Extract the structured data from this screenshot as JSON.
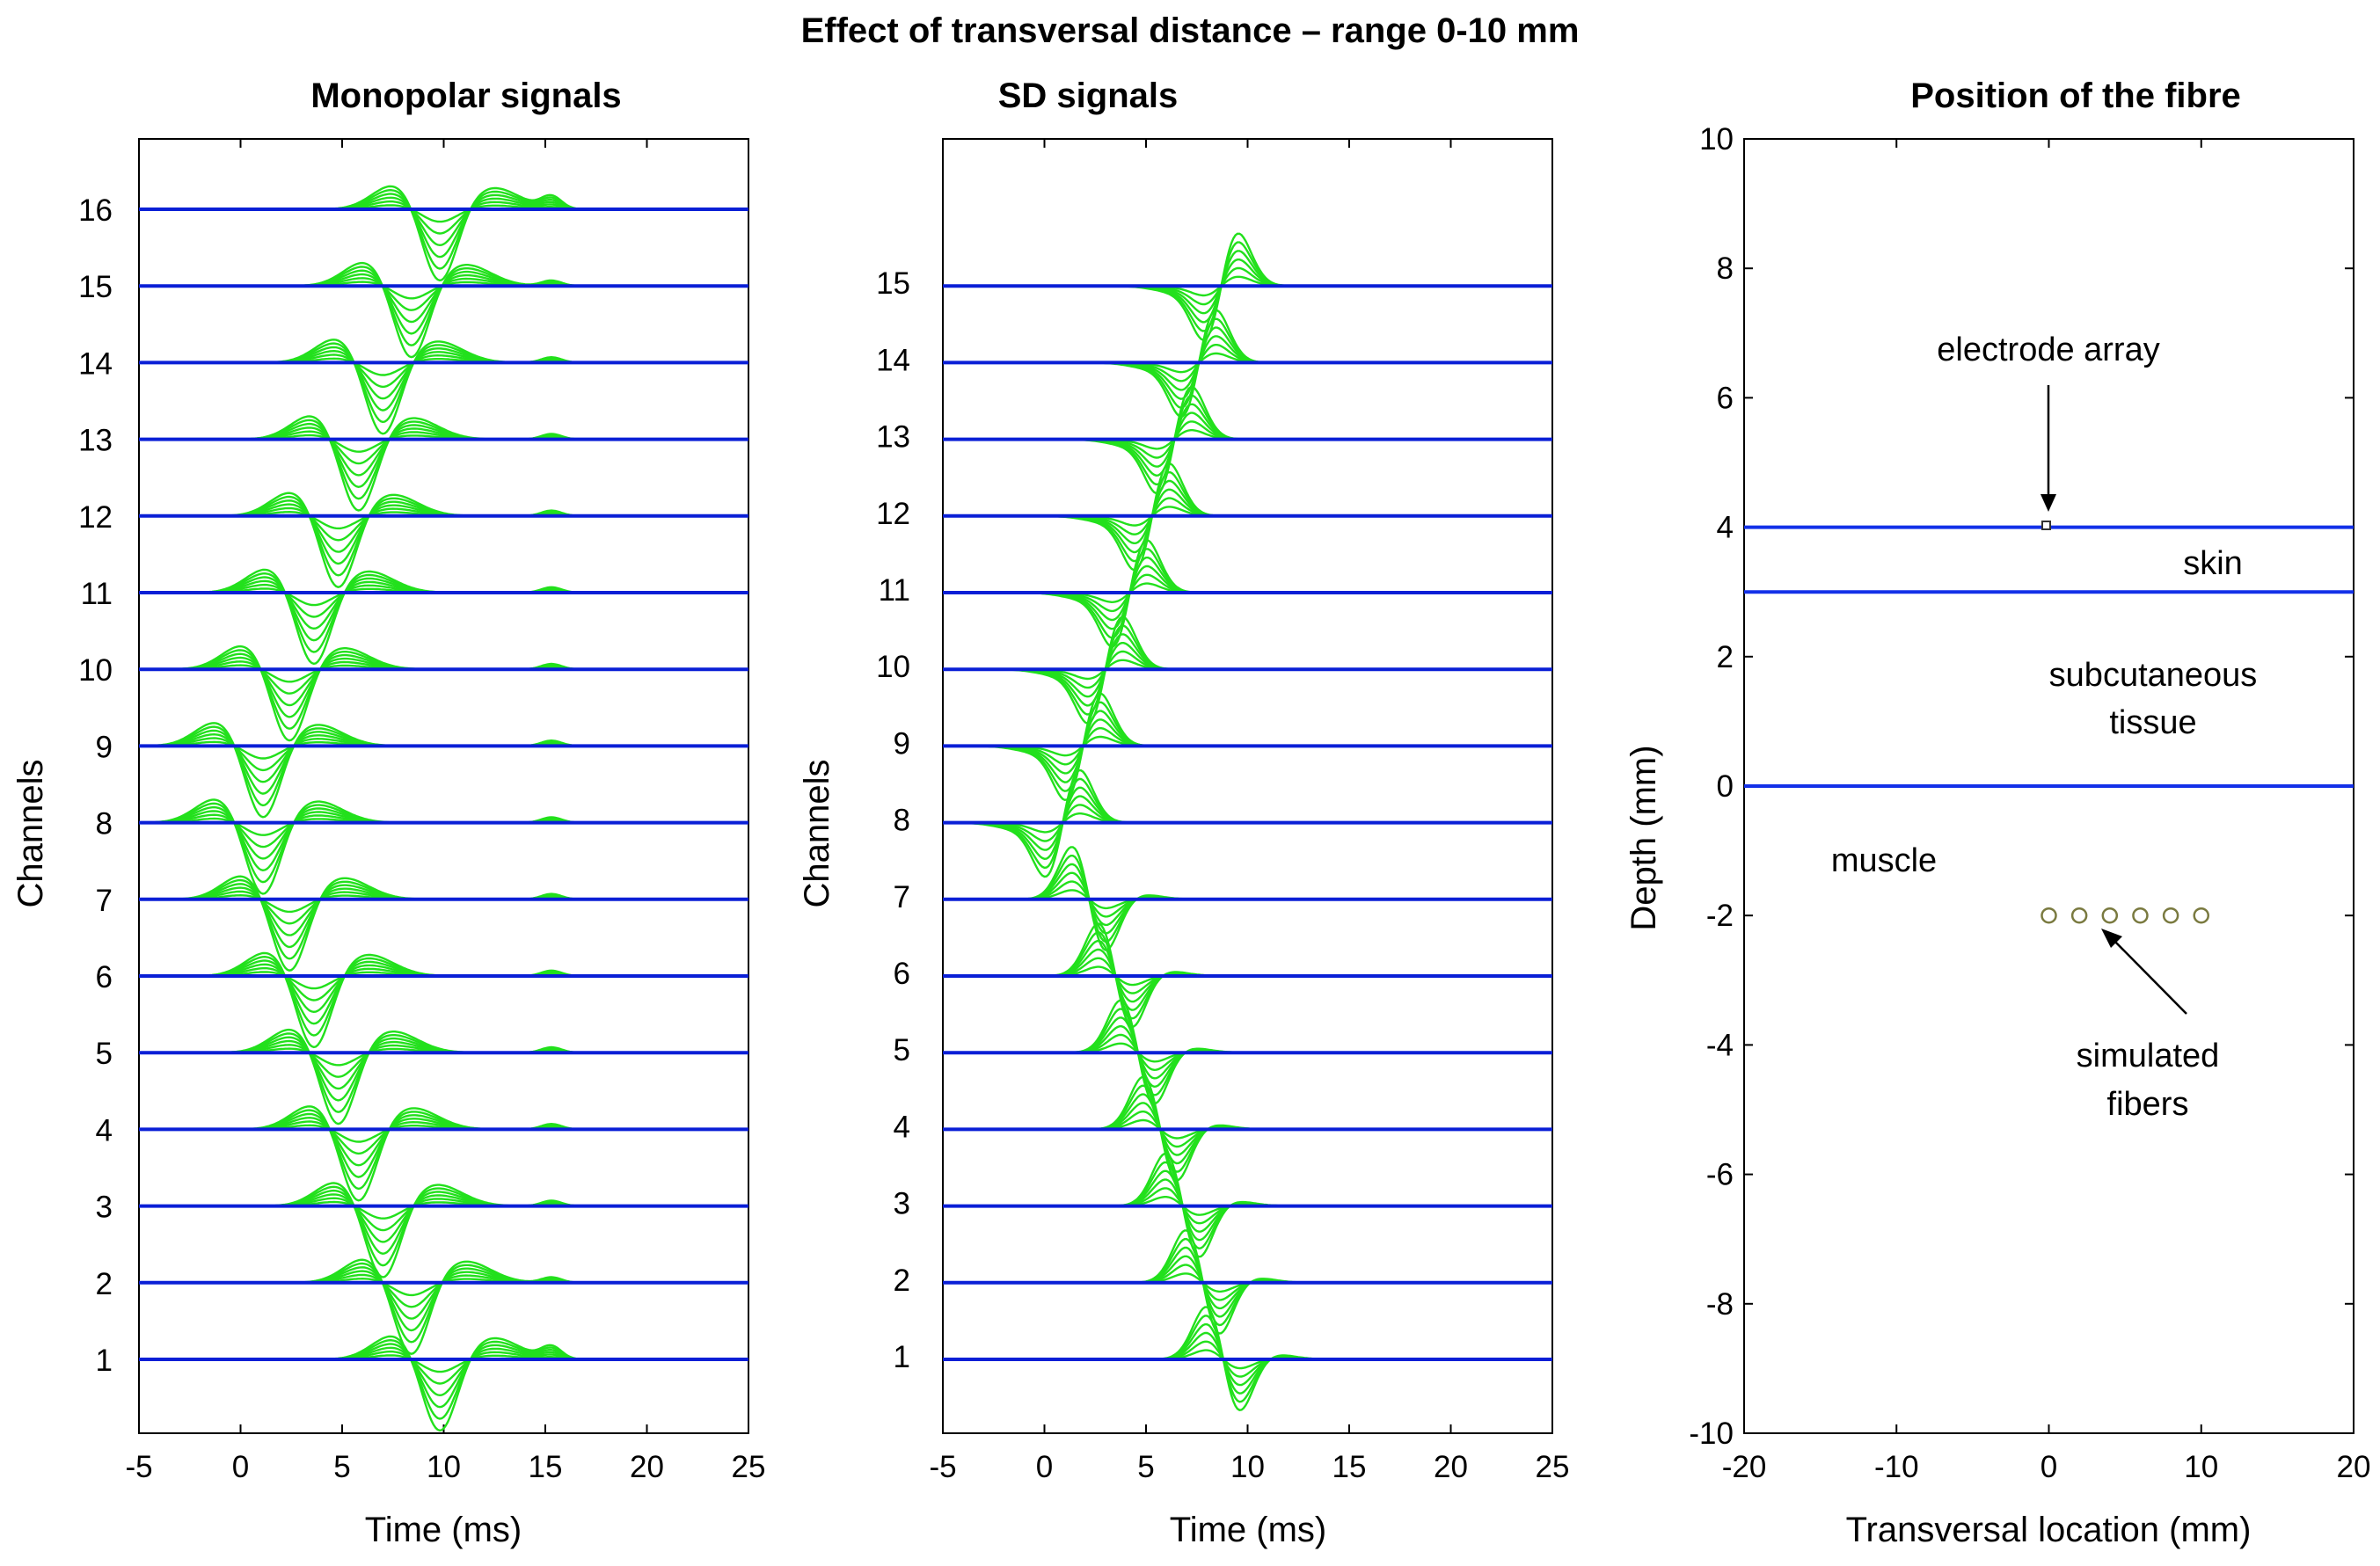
{
  "figure": {
    "suptitle": "Effect of transversal distance – range 0-10 mm"
  },
  "chart_data": [
    {
      "type": "line",
      "title": "Monopolar signals",
      "xlabel": "Time (ms)",
      "ylabel": "Channels",
      "xlim": [
        -5,
        25
      ],
      "xticks": [
        "-5",
        "0",
        "5",
        "10",
        "15",
        "20",
        "25"
      ],
      "channel_labels": [
        "1",
        "2",
        "3",
        "4",
        "5",
        "6",
        "7",
        "8",
        "9",
        "10",
        "11",
        "12",
        "13",
        "14",
        "15",
        "16"
      ],
      "series_per_channel": 6,
      "baseline_color": "#0a1fd6",
      "curve_color": "#22e01c",
      "note": "Stacked monopolar potentials, one trace per simulated fibre (6), the negative peak moves from ~10 ms (channels 1 and 16) to ~1 ms (channel 8)",
      "peak_time_ms": [
        9.8,
        8.4,
        7.0,
        5.8,
        4.8,
        3.6,
        2.4,
        1.1,
        1.1,
        2.4,
        3.6,
        4.8,
        5.8,
        7.0,
        8.4,
        9.8
      ]
    },
    {
      "type": "line",
      "title": "SD signals",
      "xlabel": "Time (ms)",
      "ylabel": "Channels",
      "xlim": [
        -5,
        25
      ],
      "xticks": [
        "-5",
        "0",
        "5",
        "10",
        "15",
        "20",
        "25"
      ],
      "channel_labels": [
        "1",
        "2",
        "3",
        "4",
        "5",
        "6",
        "7",
        "8",
        "9",
        "10",
        "11",
        "12",
        "13",
        "14",
        "15"
      ],
      "series_per_channel": 6,
      "baseline_color": "#0a1fd6",
      "curve_color": "#22e01c",
      "note": "Single-differential signals, one trace per fibre (6), biphasic waves forming a V pattern centred on channel 8",
      "zero_cross_time_ms": [
        8.8,
        7.8,
        6.8,
        5.7,
        4.6,
        3.5,
        2.2,
        0.9,
        1.9,
        3.0,
        4.2,
        5.3,
        6.4,
        7.6,
        8.7
      ]
    },
    {
      "type": "scatter",
      "title": "Position of the fibre",
      "xlabel": "Transversal location (mm)",
      "ylabel": "Depth (mm)",
      "xlim": [
        -20,
        20
      ],
      "ylim": [
        -10,
        10
      ],
      "xticks": [
        "-20",
        "-10",
        "0",
        "10",
        "20"
      ],
      "yticks": [
        "-10",
        "-8",
        "-6",
        "-4",
        "-2",
        "0",
        "2",
        "4",
        "6",
        "8",
        "10"
      ],
      "layer_lines_depth_mm": [
        4,
        3,
        0
      ],
      "electrode": {
        "x": 0,
        "y": 4
      },
      "fibres": {
        "x": [
          0,
          2,
          4,
          6,
          8,
          10
        ],
        "y": [
          -2,
          -2,
          -2,
          -2,
          -2,
          -2
        ]
      },
      "annotations": {
        "electrode_array": "electrode array",
        "skin": "skin",
        "subcutaneous_1": "subcutaneous",
        "subcutaneous_2": "tissue",
        "muscle": "muscle",
        "simulated_1": "simulated",
        "simulated_2": "fibers"
      }
    }
  ]
}
